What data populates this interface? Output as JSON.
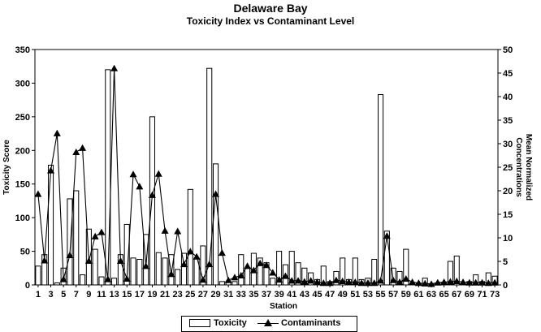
{
  "chart_data": {
    "type": "bar+line",
    "title": "Delaware Bay",
    "subtitle": "Toxicity Index vs Contaminant Level",
    "xlabel": "Station",
    "y_left_label": "Toxicity Score",
    "y_right_label": "Mean Normalized Concentrations",
    "y_left_lim": [
      0,
      350
    ],
    "y_right_lim": [
      0,
      50
    ],
    "y_left_ticks": [
      "0",
      "50",
      "100",
      "150",
      "200",
      "250",
      "300",
      "350"
    ],
    "y_right_ticks": [
      "0",
      "5",
      "10",
      "15",
      "20",
      "25",
      "30",
      "35",
      "40",
      "45",
      "50"
    ],
    "x_tick_labels": [
      "1",
      "3",
      "5",
      "7",
      "9",
      "11",
      "13",
      "15",
      "17",
      "19",
      "21",
      "23",
      "25",
      "27",
      "29",
      "31",
      "33",
      "35",
      "37",
      "39",
      "41",
      "43",
      "45",
      "47",
      "49",
      "51",
      "53",
      "55",
      "57",
      "59",
      "61",
      "63",
      "65",
      "67",
      "69",
      "71",
      "73"
    ],
    "grid": false,
    "legend_position": "bottom-center",
    "legend": [
      "Toxicity",
      "Contaminants"
    ],
    "series": [
      {
        "name": "Toxicity",
        "type": "bar",
        "axis": "left",
        "values": [
          28,
          45,
          178,
          3,
          25,
          128,
          140,
          15,
          83,
          53,
          12,
          320,
          10,
          45,
          90,
          40,
          38,
          75,
          250,
          48,
          40,
          45,
          23,
          47,
          142,
          40,
          58,
          322,
          180,
          5,
          5,
          5,
          45,
          25,
          47,
          40,
          33,
          10,
          50,
          30,
          50,
          33,
          25,
          18,
          8,
          28,
          5,
          20,
          40,
          8,
          40,
          8,
          10,
          38,
          283,
          80,
          25,
          20,
          53,
          3,
          2,
          10,
          2,
          3,
          3,
          35,
          43,
          2,
          5,
          15,
          5,
          18,
          13
        ]
      },
      {
        "name": "Contaminants",
        "type": "line",
        "axis": "right",
        "values": [
          19.3,
          5.2,
          24.3,
          32.2,
          1.2,
          6.3,
          28.2,
          29.1,
          5.1,
          10.3,
          11.2,
          1.2,
          46.0,
          5.1,
          1.3,
          23.5,
          20.9,
          4.0,
          19.1,
          23.6,
          11.5,
          2.3,
          11.4,
          4.4,
          7.1,
          6.0,
          1.1,
          4.4,
          19.3,
          6.8,
          1.0,
          1.6,
          2.0,
          4.0,
          3.1,
          4.6,
          4.2,
          2.6,
          1.1,
          1.9,
          0.9,
          0.9,
          0.7,
          0.9,
          0.6,
          0.4,
          0.4,
          1.0,
          0.8,
          0.6,
          0.6,
          0.4,
          0.4,
          0.4,
          0.9,
          10.4,
          1.0,
          0.6,
          1.3,
          0.6,
          0.4,
          0.3,
          0.2,
          0.5,
          0.6,
          0.7,
          0.8,
          0.6,
          0.5,
          0.5,
          0.5,
          0.4,
          0.5
        ]
      }
    ]
  }
}
